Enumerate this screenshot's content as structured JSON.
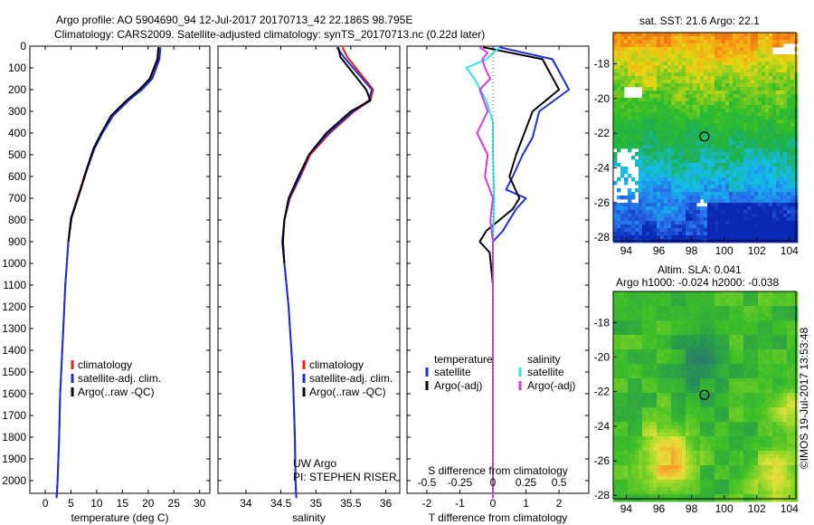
{
  "header": {
    "line1": "Argo profile: AO 5904690_94 12-Jul-2017 20170713_42 22.186S 98.795E",
    "line2": "Climatology: CARS2009. Satellite-adjusted climatology: synTS_20170713.nc (0.22d later)"
  },
  "sst_title": "sat. SST: 21.6 Argo: 22.1",
  "sla_title1": "Altim. SLA: 0.041",
  "sla_title2": "Argo h1000: -0.024 h2000: -0.038",
  "footer_vertical": "©IMOS 19-Jul-2017 13:53:48",
  "credits": [
    "UW Argo",
    "PI: STEPHEN RISER"
  ],
  "legends": {
    "temp_sal": [
      "climatology",
      "satellite-adj. clim.",
      "Argo(..raw -QC)"
    ],
    "diff_temp_head": "temperature",
    "diff_sal_head": "salinity",
    "diff_items": [
      "satellite",
      "Argo(-adj)",
      "satellite",
      "Argo(-adj)"
    ]
  },
  "colors": {
    "climatology": "#e8211a",
    "satellite": "#1b2fd6",
    "argo": "#000000",
    "sal_sat": "#34e2ee",
    "sal_argo": "#d040d8"
  },
  "chart_data": [
    {
      "type": "line",
      "xlabel": "temperature (deg C)",
      "xlim": [
        -3,
        32
      ],
      "ylim": [
        2080,
        0
      ],
      "xticks": [
        "0",
        "5",
        "10",
        "15",
        "20",
        "25",
        "30"
      ],
      "yticks": [
        "0",
        "100",
        "200",
        "300",
        "400",
        "500",
        "600",
        "700",
        "800",
        "900",
        "1000",
        "1100",
        "1200",
        "1300",
        "1400",
        "1500",
        "1600",
        "1700",
        "1800",
        "1900",
        "2000"
      ],
      "series": [
        {
          "name": "climatology",
          "color": "#e8211a",
          "x": [
            22.2,
            22.0,
            20.5,
            18.5,
            16.0,
            13.0,
            11.0,
            9.5,
            8.0,
            6.5,
            5.0,
            4.5,
            4.2,
            3.9,
            3.7,
            3.5,
            3.3,
            3.1,
            2.9,
            2.7,
            2.4,
            2.2
          ],
          "y": [
            5,
            60,
            150,
            200,
            250,
            320,
            400,
            470,
            570,
            680,
            790,
            900,
            1000,
            1100,
            1200,
            1300,
            1400,
            1500,
            1600,
            1800,
            2000,
            2080
          ]
        },
        {
          "name": "satellite-adj. clim.",
          "color": "#1b2fd6",
          "x": [
            22.4,
            22.2,
            20.8,
            18.8,
            16.2,
            13.2,
            11.1,
            9.6,
            8.1,
            6.6,
            5.0,
            4.5,
            4.2,
            3.9,
            3.7,
            3.5,
            3.3,
            3.1,
            2.9,
            2.7,
            2.4,
            2.2
          ],
          "y": [
            5,
            60,
            150,
            200,
            250,
            320,
            400,
            470,
            570,
            680,
            790,
            900,
            1000,
            1100,
            1200,
            1300,
            1400,
            1500,
            1600,
            1800,
            2000,
            2080
          ]
        },
        {
          "name": "Argo(..raw -QC)",
          "color": "#000000",
          "x": [
            22.0,
            21.8,
            20.3,
            18.3,
            15.8,
            12.8,
            10.9,
            9.4,
            8.0,
            6.6,
            5.1,
            4.5
          ],
          "y": [
            5,
            60,
            150,
            200,
            250,
            320,
            400,
            470,
            570,
            680,
            790,
            900
          ]
        }
      ]
    },
    {
      "type": "line",
      "xlabel": "salinity",
      "xlim": [
        33.6,
        36.2
      ],
      "ylim": [
        2080,
        0
      ],
      "xticks": [
        "34",
        "34.5",
        "35",
        "35.5",
        "36"
      ],
      "series": [
        {
          "name": "climatology",
          "color": "#e8211a",
          "x": [
            35.38,
            35.45,
            35.82,
            35.78,
            35.55,
            35.2,
            34.92,
            34.78,
            34.63,
            34.55,
            34.52,
            34.55,
            34.58,
            34.61,
            34.63,
            34.65,
            34.67,
            34.68,
            34.69,
            34.7,
            34.71,
            34.72
          ],
          "y": [
            5,
            50,
            200,
            250,
            300,
            400,
            500,
            600,
            700,
            800,
            900,
            1000,
            1100,
            1200,
            1300,
            1400,
            1500,
            1600,
            1700,
            1800,
            2000,
            2080
          ]
        },
        {
          "name": "satellite-adj. clim.",
          "color": "#1b2fd6",
          "x": [
            35.3,
            35.4,
            35.8,
            35.76,
            35.53,
            35.18,
            34.9,
            34.77,
            34.62,
            34.55,
            34.52,
            34.55,
            34.58,
            34.61,
            34.63,
            34.65,
            34.67,
            34.68,
            34.69,
            34.7,
            34.71,
            34.72
          ],
          "y": [
            5,
            50,
            200,
            250,
            300,
            400,
            500,
            600,
            700,
            800,
            900,
            1000,
            1100,
            1200,
            1300,
            1400,
            1500,
            1600,
            1700,
            1800,
            2000,
            2080
          ]
        },
        {
          "name": "Argo(..raw -QC)",
          "color": "#000000",
          "x": [
            35.32,
            35.35,
            35.72,
            35.78,
            35.5,
            35.15,
            34.9,
            34.75,
            34.61,
            34.55,
            34.53,
            34.55
          ],
          "y": [
            5,
            50,
            200,
            250,
            300,
            400,
            500,
            600,
            700,
            800,
            900,
            1000
          ]
        }
      ]
    },
    {
      "type": "line",
      "xlabel": "T difference from climatology",
      "xlabel2": "S difference from climatology",
      "xlim": [
        -2.6,
        2.9
      ],
      "ylim": [
        2080,
        0
      ],
      "xticks": [
        "-2",
        "-1",
        "0",
        "1",
        "2"
      ],
      "xticks_top": [
        "-0.5",
        "-0.25",
        "0",
        "0.25",
        "0.5"
      ],
      "series": [
        {
          "name": "temperature satellite",
          "color": "#1b2fd6",
          "x": [
            0.2,
            1.8,
            2.3,
            1.4,
            1.2,
            0.9,
            0.6,
            0.4,
            1.0,
            0.7,
            0.3,
            0.0,
            0.0,
            0.0,
            0.0,
            0.0
          ],
          "y": [
            5,
            60,
            200,
            300,
            420,
            500,
            600,
            660,
            700,
            750,
            850,
            900,
            1100,
            1500,
            1800,
            2080
          ]
        },
        {
          "name": "temperature Argo(-adj)",
          "color": "#000000",
          "x": [
            -0.3,
            1.5,
            2.0,
            1.2,
            0.9,
            0.7,
            0.5,
            0.8,
            0.6,
            -0.2,
            -0.4,
            -0.1,
            0.0,
            0.0,
            0.0
          ],
          "y": [
            5,
            60,
            200,
            300,
            420,
            500,
            600,
            700,
            750,
            850,
            900,
            950,
            1100,
            1400,
            1700
          ]
        },
        {
          "name": "salinity satellite",
          "color": "#34e2ee",
          "x": [
            0.05,
            -0.05,
            -0.2,
            -0.14,
            -0.05,
            0.0,
            0.0,
            0.01,
            0.0,
            0.0,
            0.0,
            0.0
          ],
          "y": [
            5,
            60,
            100,
            150,
            250,
            350,
            500,
            700,
            900,
            1200,
            1700,
            2080
          ]
        },
        {
          "name": "salinity Argo(-adj)",
          "color": "#d040d8",
          "x": [
            -0.1,
            -0.04,
            -0.08,
            -0.06,
            -0.02,
            -0.1,
            -0.04,
            -0.12,
            -0.04,
            -0.06,
            0.0,
            -0.02,
            0.0,
            0.0,
            0.0,
            0.0
          ],
          "y": [
            5,
            30,
            60,
            100,
            150,
            200,
            300,
            400,
            500,
            600,
            700,
            800,
            900,
            1100,
            1500,
            2080
          ]
        }
      ]
    },
    {
      "type": "heatmap",
      "title": "sat. SST: 21.6 Argo: 22.1",
      "xlim": [
        93.2,
        104.4
      ],
      "ylim": [
        -28.2,
        -16.2
      ],
      "xticks": [
        "94",
        "96",
        "98",
        "100",
        "102",
        "104"
      ],
      "yticks": [
        "-18",
        "-20",
        "-22",
        "-24",
        "-26",
        "-28"
      ],
      "marker": {
        "lon": 98.795,
        "lat": -22.186
      }
    },
    {
      "type": "heatmap",
      "title": "Altim. SLA: 0.041",
      "xlim": [
        93.2,
        104.4
      ],
      "ylim": [
        -28.2,
        -16.2
      ],
      "xticks": [
        "94",
        "96",
        "98",
        "100",
        "102",
        "104"
      ],
      "yticks": [
        "-18",
        "-20",
        "-22",
        "-24",
        "-26",
        "-28"
      ],
      "marker": {
        "lon": 98.795,
        "lat": -22.186
      }
    }
  ]
}
